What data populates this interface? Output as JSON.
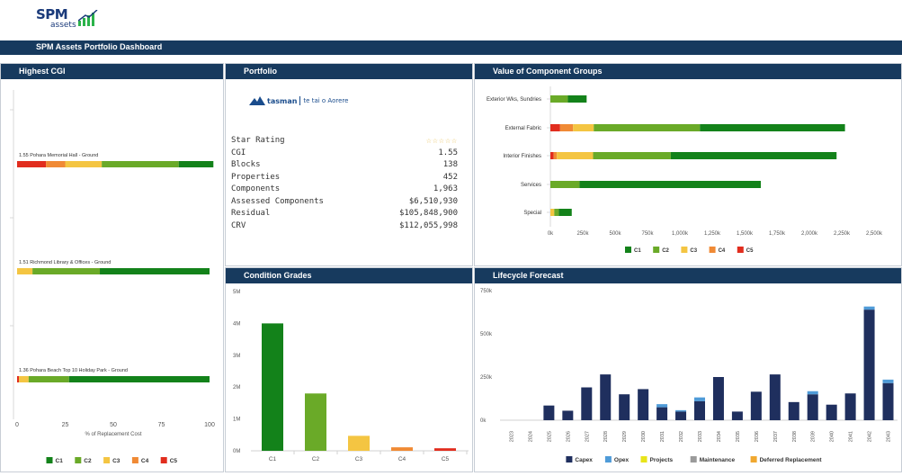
{
  "app": {
    "logo_main": "SPM",
    "logo_sub": "assets",
    "title": "SPM Assets Portfolio Dashboard"
  },
  "panels": {
    "highest_cgi": "Highest CGI",
    "portfolio": "Portfolio",
    "value_groups": "Value of Component Groups",
    "condition": "Condition Grades",
    "lifecycle": "Lifecycle Forecast"
  },
  "portfolio": {
    "logo_name": "tasman",
    "logo_tagline": "te tai o Aorere",
    "rows": [
      {
        "label": "Star Rating",
        "value": "☆☆☆☆☆",
        "stars": true
      },
      {
        "label": "CGI",
        "value": "1.55"
      },
      {
        "label": "Blocks",
        "value": "138"
      },
      {
        "label": "Properties",
        "value": "452"
      },
      {
        "label": "Components",
        "value": "1,963"
      },
      {
        "label": "Assessed Components",
        "value": "$6,510,930"
      },
      {
        "label": "Residual",
        "value": "$105,848,900"
      },
      {
        "label": "CRV",
        "value": "$112,055,998"
      }
    ]
  },
  "colors": {
    "C1": "#13821a",
    "C2": "#6aaa28",
    "C3": "#f4c542",
    "C4": "#f08a35",
    "C5": "#e12d1e",
    "Capex": "#1f2f5e",
    "Opex": "#4f9bd8",
    "Projects": "#e8e41a",
    "Maintenance": "#9a9a9a",
    "Deferred Replacement": "#f0a830"
  },
  "chart_data": [
    {
      "id": "highest_cgi",
      "type": "bar",
      "orientation": "horizontal",
      "stacked": true,
      "categories": [
        "1.55 Pohara Memorial Hall - Ground",
        "1.51 Richmond Library & Offices - Ground",
        "1.36 Pohara Beach Top 10 Holiday Park - Ground"
      ],
      "series": [
        {
          "name": "C1",
          "values": [
            18,
            57,
            73
          ]
        },
        {
          "name": "C2",
          "values": [
            40,
            35,
            21
          ]
        },
        {
          "name": "C3",
          "values": [
            19,
            8,
            5
          ]
        },
        {
          "name": "C4",
          "values": [
            10,
            0,
            0
          ]
        },
        {
          "name": "C5",
          "values": [
            15,
            0,
            1
          ]
        }
      ],
      "xlabel": "% of Replacement Cost",
      "xticks": [
        "0",
        "25",
        "50",
        "75",
        "100"
      ],
      "xlim": [
        0,
        100
      ],
      "legend": "bottom"
    },
    {
      "id": "value_groups",
      "type": "bar",
      "orientation": "horizontal",
      "stacked": true,
      "categories": [
        "Exterior Wks, Sundries",
        "External Fabric",
        "Interior Finishes",
        "Services",
        "Special"
      ],
      "series": [
        {
          "name": "C1",
          "values": [
            145000,
            1120000,
            1280000,
            1400000,
            100000
          ]
        },
        {
          "name": "C2",
          "values": [
            135000,
            820000,
            600000,
            225000,
            35000
          ]
        },
        {
          "name": "C3",
          "values": [
            0,
            160000,
            280000,
            0,
            30000
          ]
        },
        {
          "name": "C4",
          "values": [
            0,
            100000,
            25000,
            0,
            0
          ]
        },
        {
          "name": "C5",
          "values": [
            0,
            75000,
            25000,
            0,
            0
          ]
        }
      ],
      "xticks": [
        "0k",
        "250k",
        "500k",
        "750k",
        "1,000k",
        "1,250k",
        "1,500k",
        "1,750k",
        "2,000k",
        "2,250k",
        "2,500k"
      ],
      "xlim": [
        0,
        2500000
      ],
      "legend": "bottom"
    },
    {
      "id": "condition_grades",
      "type": "bar",
      "categories": [
        "C1",
        "C2",
        "C3",
        "C4",
        "C5"
      ],
      "values": [
        4000000,
        1800000,
        470000,
        110000,
        80000
      ],
      "yticks": [
        "0M",
        "1M",
        "2M",
        "3M",
        "4M",
        "5M"
      ],
      "ylim": [
        0,
        5000000
      ]
    },
    {
      "id": "lifecycle",
      "type": "bar",
      "stacked": true,
      "categories": [
        "2023",
        "2024",
        "2025",
        "2026",
        "2027",
        "2028",
        "2029",
        "2030",
        "2031",
        "2032",
        "2033",
        "2034",
        "2035",
        "2036",
        "2037",
        "2038",
        "2039",
        "2040",
        "2041",
        "2042",
        "2043"
      ],
      "series": [
        {
          "name": "Capex",
          "values": [
            0,
            0,
            85000,
            55000,
            190000,
            265000,
            150000,
            180000,
            75000,
            50000,
            110000,
            250000,
            50000,
            165000,
            265000,
            105000,
            150000,
            90000,
            155000,
            640000,
            215000
          ]
        },
        {
          "name": "Opex",
          "values": [
            0,
            0,
            0,
            0,
            0,
            0,
            0,
            0,
            18000,
            8000,
            22000,
            0,
            0,
            0,
            0,
            0,
            18000,
            0,
            0,
            18000,
            20000
          ]
        },
        {
          "name": "Projects",
          "values": [
            0,
            0,
            0,
            0,
            0,
            0,
            0,
            0,
            0,
            0,
            0,
            0,
            0,
            0,
            0,
            0,
            0,
            0,
            0,
            0,
            0
          ]
        },
        {
          "name": "Maintenance",
          "values": [
            0,
            0,
            0,
            0,
            0,
            0,
            0,
            0,
            0,
            0,
            0,
            0,
            0,
            0,
            0,
            0,
            0,
            0,
            0,
            0,
            0
          ]
        },
        {
          "name": "Deferred Replacement",
          "values": [
            0,
            0,
            0,
            0,
            0,
            0,
            0,
            0,
            0,
            0,
            0,
            0,
            0,
            0,
            0,
            0,
            0,
            0,
            0,
            0,
            0
          ]
        }
      ],
      "yticks": [
        "0k",
        "250k",
        "500k",
        "750k"
      ],
      "ylim": [
        0,
        750000
      ],
      "legend": "bottom"
    }
  ]
}
